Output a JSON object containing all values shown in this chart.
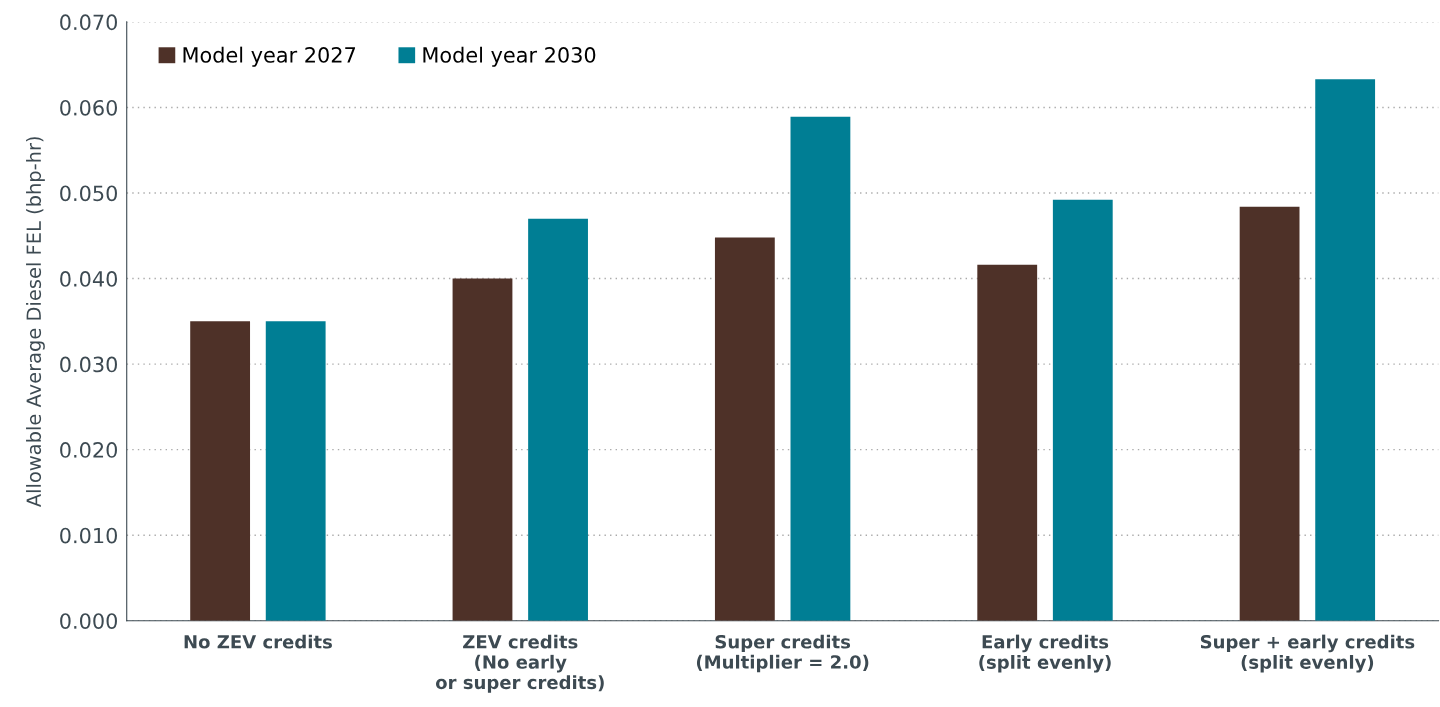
{
  "chart_data": {
    "type": "bar",
    "ylabel": "Allowable Average Diesel FEL (bhp-hr)",
    "categories": [
      "No ZEV credits",
      "ZEV credits\n(No early\nor super credits)",
      "Super credits\n(Multiplier = 2.0)",
      "Early credits\n(split evenly)",
      "Super + early credits\n(split evenly)"
    ],
    "series": [
      {
        "name": "Model year 2027",
        "color": "#4e3128",
        "values": [
          0.035,
          0.04,
          0.0448,
          0.0416,
          0.0484
        ]
      },
      {
        "name": "Model year 2030",
        "color": "#007e94",
        "values": [
          0.035,
          0.047,
          0.0589,
          0.0492,
          0.0633
        ]
      }
    ],
    "ylim": [
      0,
      0.07
    ],
    "yticks": [
      {
        "value": 0,
        "label": "0.000"
      },
      {
        "value": 0.01,
        "label": "0.010"
      },
      {
        "value": 0.02,
        "label": "0.020"
      },
      {
        "value": 0.03,
        "label": "0.030"
      },
      {
        "value": 0.04,
        "label": "0.040"
      },
      {
        "value": 0.05,
        "label": "0.050"
      },
      {
        "value": 0.06,
        "label": "0.060"
      },
      {
        "value": 0.07,
        "label": "0.070"
      }
    ],
    "grid": "y",
    "legend": "top left"
  }
}
